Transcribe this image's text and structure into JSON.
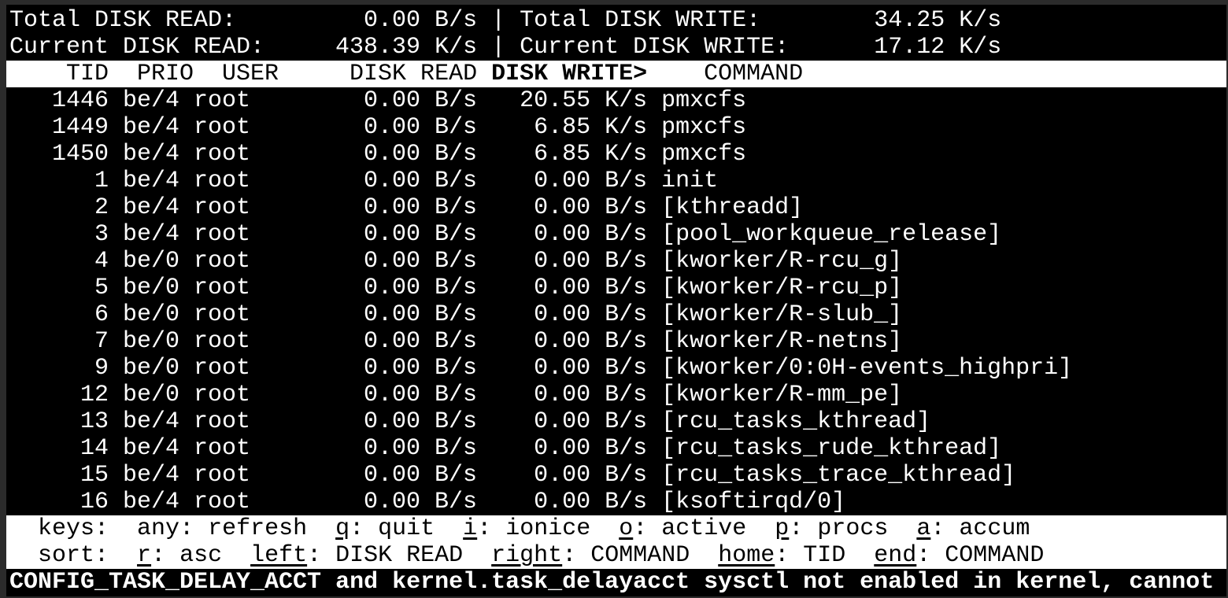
{
  "summary": {
    "total_read_label": "Total DISK READ:",
    "total_read": "0.00 B/s",
    "total_write_label": "Total DISK WRITE:",
    "total_write": "34.25 K/s",
    "current_read_label": "Current DISK READ:",
    "current_read": "438.39 K/s",
    "current_write_label": "Current DISK WRITE:",
    "current_write": "17.12 K/s",
    "separator": "|"
  },
  "columns": {
    "tid": "TID",
    "prio": "PRIO",
    "user": "USER",
    "disk_read": "DISK READ",
    "disk_write": "DISK WRITE>",
    "command": "COMMAND"
  },
  "rows": [
    {
      "tid": "1446",
      "prio": "be/4",
      "user": "root",
      "read": "0.00 B/s",
      "write": "20.55 K/s",
      "command": "pmxcfs"
    },
    {
      "tid": "1449",
      "prio": "be/4",
      "user": "root",
      "read": "0.00 B/s",
      "write": "6.85 K/s",
      "command": "pmxcfs"
    },
    {
      "tid": "1450",
      "prio": "be/4",
      "user": "root",
      "read": "0.00 B/s",
      "write": "6.85 K/s",
      "command": "pmxcfs"
    },
    {
      "tid": "1",
      "prio": "be/4",
      "user": "root",
      "read": "0.00 B/s",
      "write": "0.00 B/s",
      "command": "init"
    },
    {
      "tid": "2",
      "prio": "be/4",
      "user": "root",
      "read": "0.00 B/s",
      "write": "0.00 B/s",
      "command": "[kthreadd]"
    },
    {
      "tid": "3",
      "prio": "be/4",
      "user": "root",
      "read": "0.00 B/s",
      "write": "0.00 B/s",
      "command": "[pool_workqueue_release]"
    },
    {
      "tid": "4",
      "prio": "be/0",
      "user": "root",
      "read": "0.00 B/s",
      "write": "0.00 B/s",
      "command": "[kworker/R-rcu_g]"
    },
    {
      "tid": "5",
      "prio": "be/0",
      "user": "root",
      "read": "0.00 B/s",
      "write": "0.00 B/s",
      "command": "[kworker/R-rcu_p]"
    },
    {
      "tid": "6",
      "prio": "be/0",
      "user": "root",
      "read": "0.00 B/s",
      "write": "0.00 B/s",
      "command": "[kworker/R-slub_]"
    },
    {
      "tid": "7",
      "prio": "be/0",
      "user": "root",
      "read": "0.00 B/s",
      "write": "0.00 B/s",
      "command": "[kworker/R-netns]"
    },
    {
      "tid": "9",
      "prio": "be/0",
      "user": "root",
      "read": "0.00 B/s",
      "write": "0.00 B/s",
      "command": "[kworker/0:0H-events_highpri]"
    },
    {
      "tid": "12",
      "prio": "be/0",
      "user": "root",
      "read": "0.00 B/s",
      "write": "0.00 B/s",
      "command": "[kworker/R-mm_pe]"
    },
    {
      "tid": "13",
      "prio": "be/4",
      "user": "root",
      "read": "0.00 B/s",
      "write": "0.00 B/s",
      "command": "[rcu_tasks_kthread]"
    },
    {
      "tid": "14",
      "prio": "be/4",
      "user": "root",
      "read": "0.00 B/s",
      "write": "0.00 B/s",
      "command": "[rcu_tasks_rude_kthread]"
    },
    {
      "tid": "15",
      "prio": "be/4",
      "user": "root",
      "read": "0.00 B/s",
      "write": "0.00 B/s",
      "command": "[rcu_tasks_trace_kthread]"
    },
    {
      "tid": "16",
      "prio": "be/4",
      "user": "root",
      "read": "0.00 B/s",
      "write": "0.00 B/s",
      "command": "[ksoftirqd/0]"
    }
  ],
  "keys": {
    "label": "keys:",
    "items": [
      {
        "key": "any",
        "desc": ": refresh",
        "underline": false
      },
      {
        "key": "q",
        "desc": ": quit",
        "underline": true
      },
      {
        "key": "i",
        "desc": ": ionice",
        "underline": true
      },
      {
        "key": "o",
        "desc": ": active",
        "underline": true
      },
      {
        "key": "p",
        "desc": ": procs",
        "underline": true
      },
      {
        "key": "a",
        "desc": ": accum",
        "underline": true
      }
    ]
  },
  "sort": {
    "label": "sort:",
    "items": [
      {
        "key": "r",
        "desc": ": asc",
        "underline": true
      },
      {
        "key": "left",
        "desc": ": DISK READ",
        "underline": true
      },
      {
        "key": "right",
        "desc": ": COMMAND",
        "underline": true
      },
      {
        "key": "home",
        "desc": ": TID",
        "underline": true
      },
      {
        "key": "end",
        "desc": ": COMMAND",
        "underline": true
      }
    ]
  },
  "status_message": "CONFIG_TASK_DELAY_ACCT and kernel.task_delayacct sysctl not enabled in kernel, cannot"
}
